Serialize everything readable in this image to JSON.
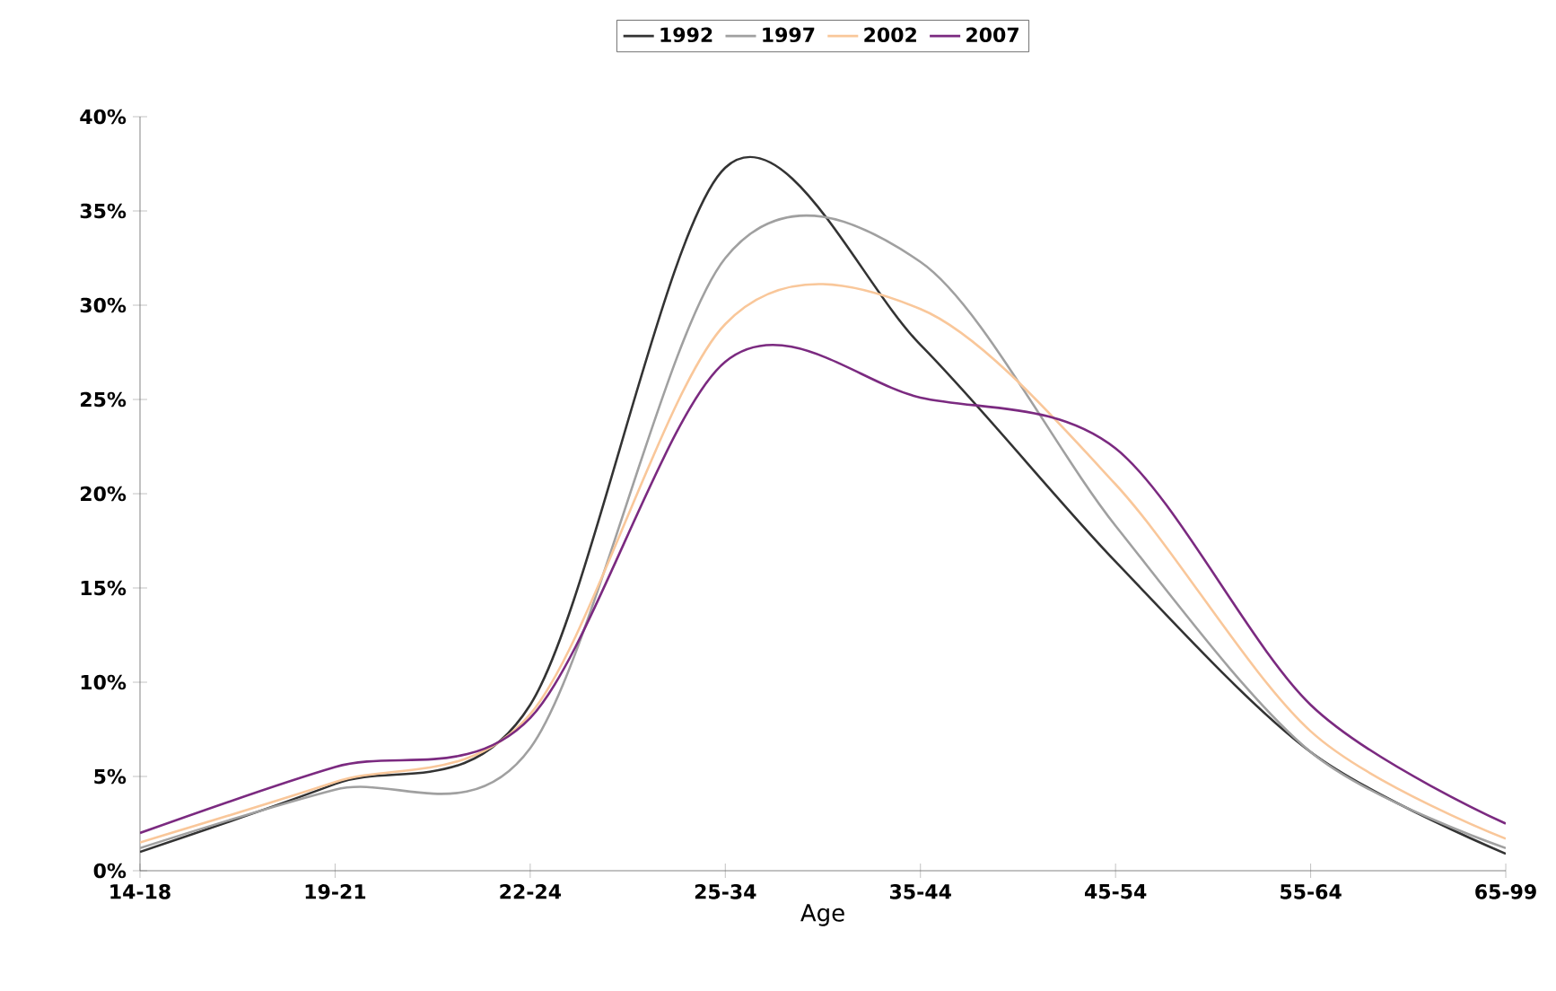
{
  "chart_data": {
    "type": "line",
    "xlabel": "Age",
    "categories": [
      "14-18",
      "19-21",
      "22-24",
      "25-34",
      "35-44",
      "45-54",
      "55-64",
      "65-99"
    ],
    "series": [
      {
        "name": "1992",
        "color": "#333333",
        "values": [
          1.0,
          4.6,
          8.8,
          37.3,
          27.9,
          16.4,
          6.3,
          0.9
        ]
      },
      {
        "name": "1997",
        "color": "#a0a0a0",
        "values": [
          1.2,
          4.3,
          6.5,
          32.5,
          32.3,
          18.3,
          6.3,
          1.2
        ]
      },
      {
        "name": "2002",
        "color": "#f9c79a",
        "values": [
          1.5,
          4.7,
          8.3,
          29.0,
          29.8,
          20.5,
          7.4,
          1.7
        ]
      },
      {
        "name": "2007",
        "color": "#7b2a80",
        "values": [
          2.0,
          5.5,
          8.1,
          27.0,
          25.1,
          22.4,
          8.8,
          2.5
        ]
      }
    ],
    "ylim": [
      0,
      40
    ],
    "yticks": [
      {
        "value": 0,
        "label": "0%"
      },
      {
        "value": 5,
        "label": "5%"
      },
      {
        "value": 10,
        "label": "10%"
      },
      {
        "value": 15,
        "label": "15%"
      },
      {
        "value": 20,
        "label": "20%"
      },
      {
        "value": 25,
        "label": "25%"
      },
      {
        "value": 30,
        "label": "30%"
      },
      {
        "value": 35,
        "label": "35%"
      },
      {
        "value": 40,
        "label": "40%"
      }
    ],
    "legend": "top",
    "grid": false,
    "marker": "none",
    "line_style": "solid"
  }
}
